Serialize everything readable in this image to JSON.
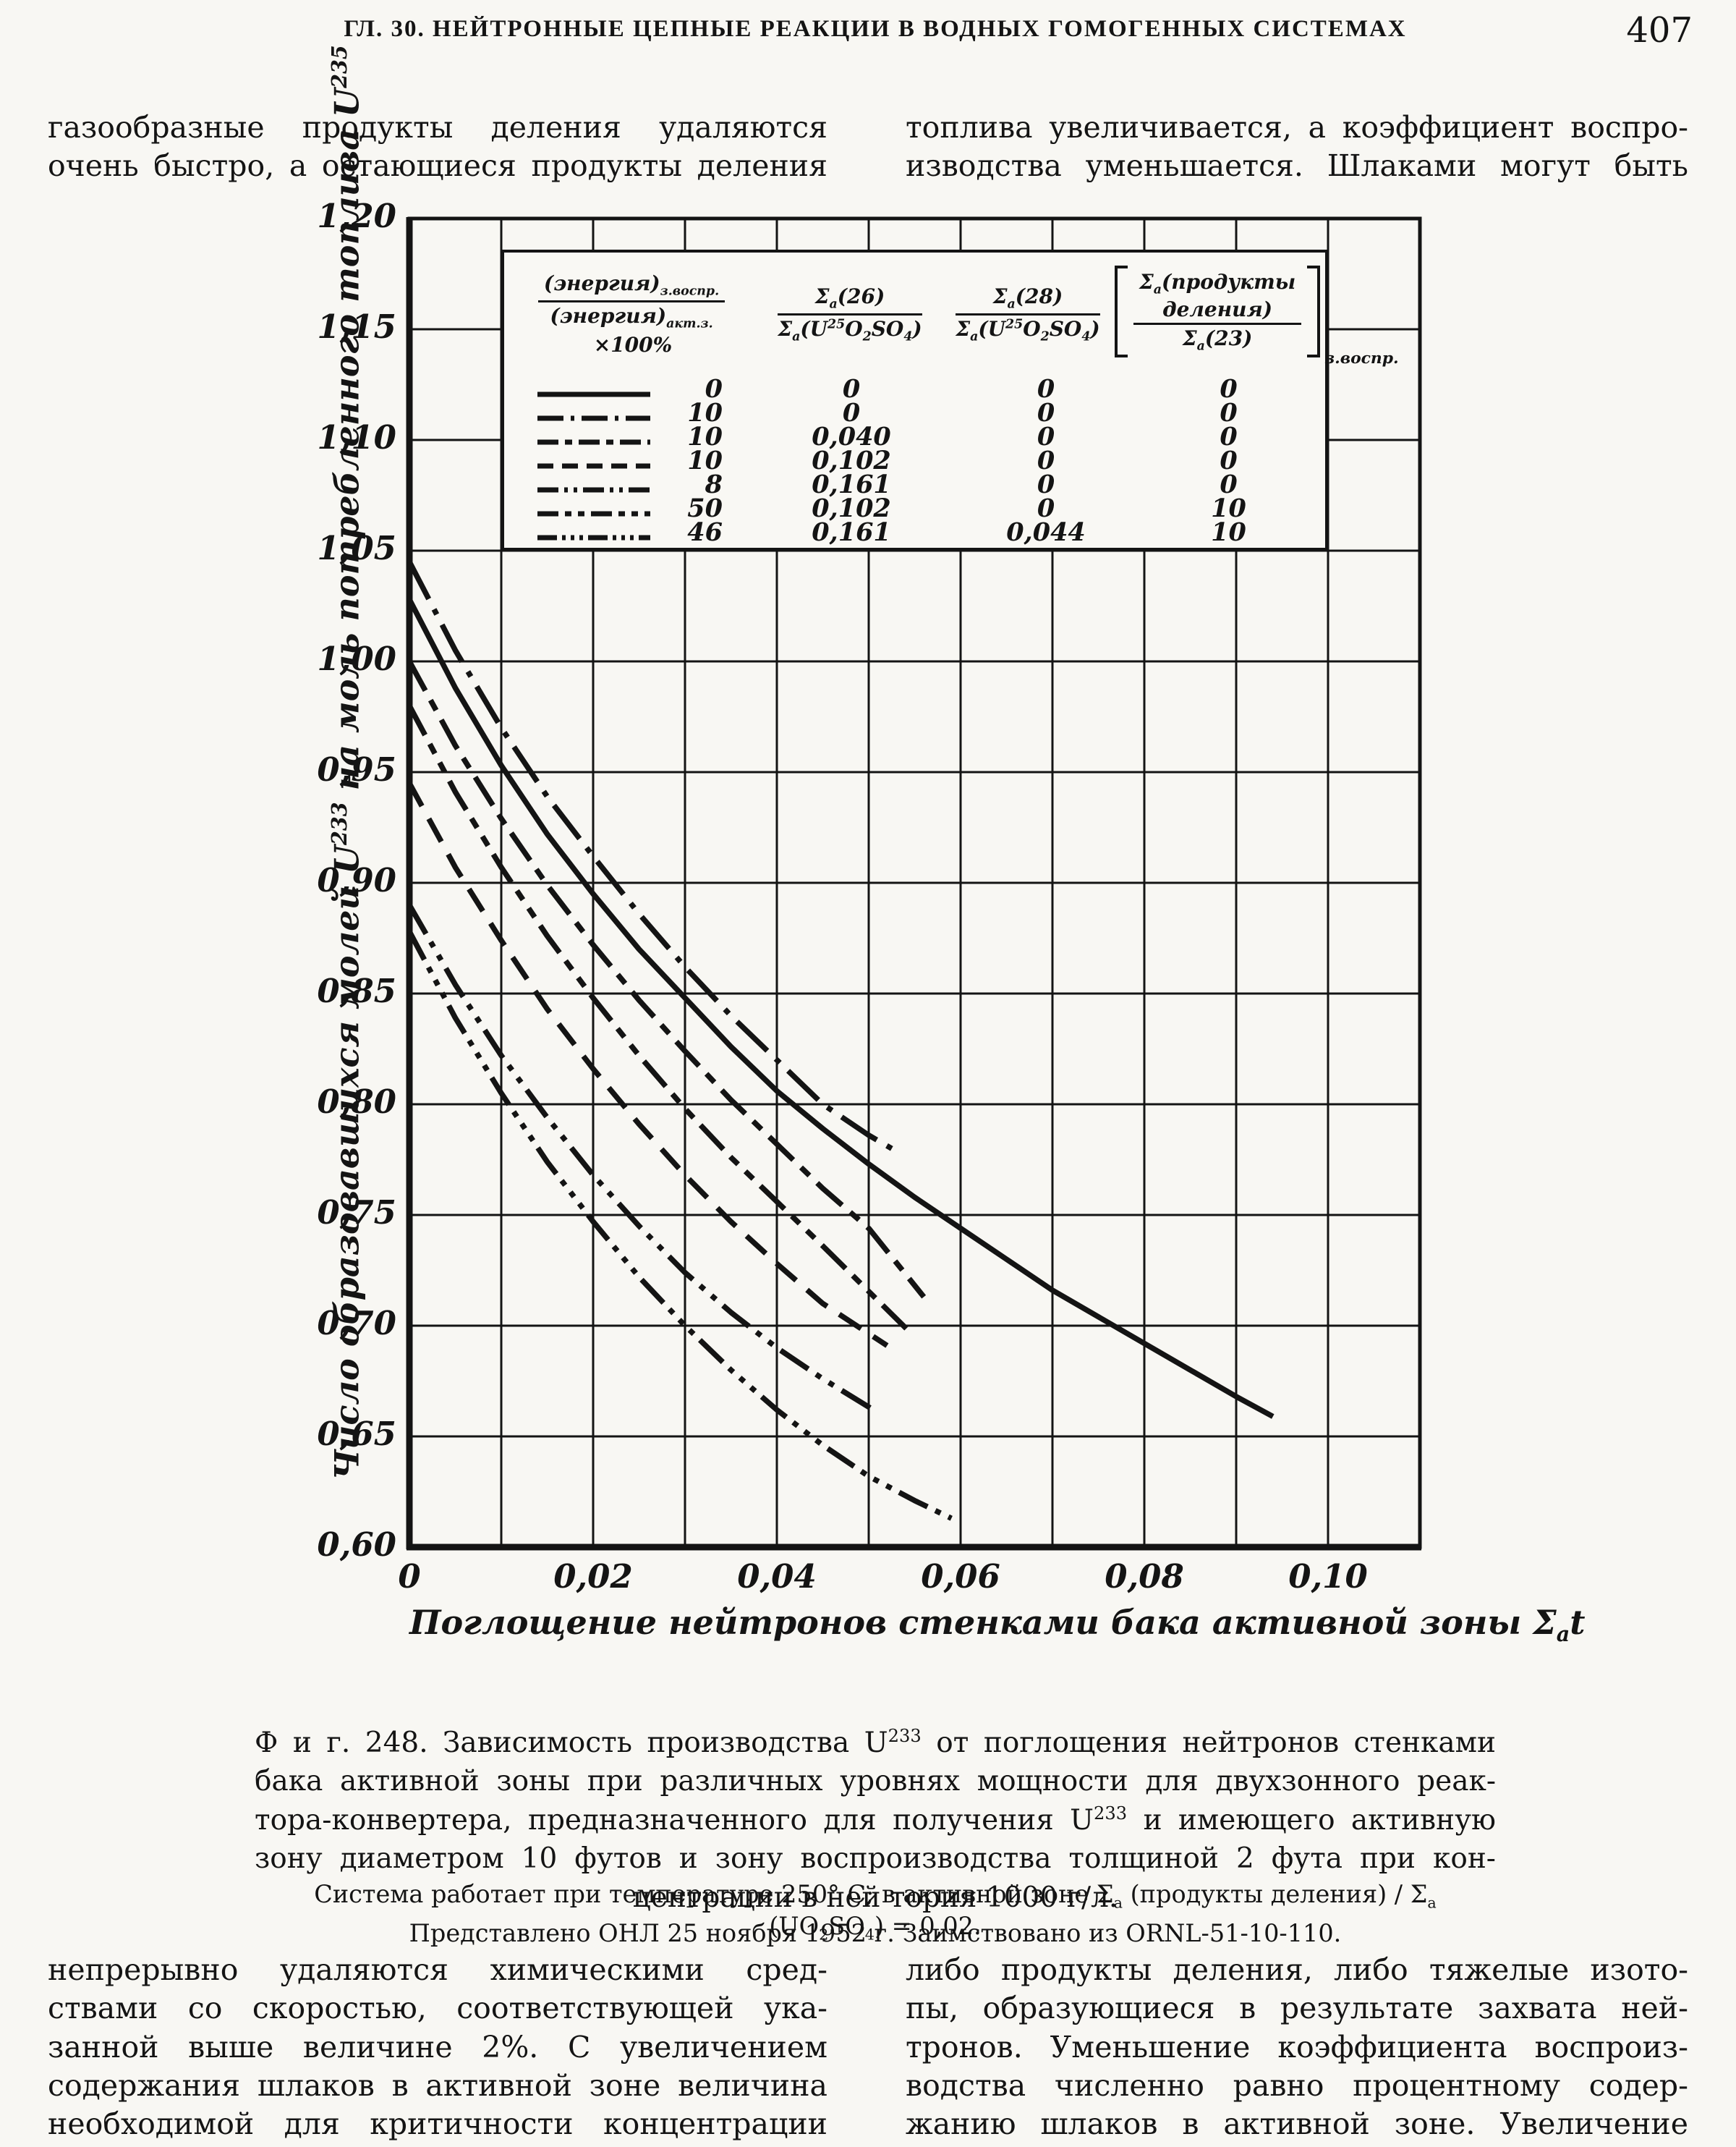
{
  "page": {
    "header_title": "ГЛ. 30. НЕЙТРОННЫЕ ЦЕПНЫЕ РЕАКЦИИ В ВОДНЫХ ГОМОГЕННЫХ СИСТЕМАХ",
    "page_number": "407",
    "ink_color": "#141414",
    "paper_color": "#f8f7f3"
  },
  "paragraphs": {
    "top_left": [
      "газообразные продукты деления удаляются",
      "очень быстро, а остающиеся продукты деления"
    ],
    "top_right": [
      "топлива увеличивается, а коэффициент воспро-",
      "изводства уменьшается. Шлаками могут быть"
    ],
    "bottom_left": [
      "непрерывно удаляются химическими сред-",
      "ствами со скоростью, соответствующей ука-",
      "занной выше величине 2%. С увеличением",
      "содержания шлаков в активной зоне величина",
      "необходимой для критичности концентрации"
    ],
    "bottom_right": [
      "либо продукты деления, либо тяжелые изото-",
      "пы, образующиеся в результате захвата ней-",
      "тронов. Уменьшение коэффициента воспроиз-",
      "водства численно равно процентному содер-",
      "жанию шлаков в активной зоне. Увеличение"
    ]
  },
  "chart_data": {
    "type": "line",
    "title": "",
    "xlabel": "Поглощение нейтронов стенками бака активной зоны Σ_{a}t",
    "ylabel": "Число образовавшихся молей U^{233} на моль потребленного топлива U^{235}",
    "xlim": [
      0,
      0.11
    ],
    "ylim": [
      0.6,
      1.2
    ],
    "grid": "on",
    "x_tick_labels": [
      "0",
      "0,02",
      "0,04",
      "0,06",
      "0,08",
      "0,10"
    ],
    "x_tick_values": [
      0,
      0.02,
      0.04,
      0.06,
      0.08,
      0.1
    ],
    "y_tick_labels": [
      "1,20",
      "1,15",
      "1,10",
      "1,05",
      "1,00",
      "0,95",
      "0,90",
      "0,85",
      "0,80",
      "0,75",
      "0,70",
      "0,65",
      "0,60"
    ],
    "y_tick_values": [
      1.2,
      1.15,
      1.1,
      1.05,
      1.0,
      0.95,
      0.9,
      0.85,
      0.8,
      0.75,
      0.7,
      0.65,
      0.6
    ],
    "x_grid_step": 0.01,
    "y_grid_step": 0.05,
    "series": [
      {
        "name": "solid",
        "line_style": "solid",
        "legend_values": [
          "0",
          "0",
          "0",
          "0"
        ],
        "points": [
          [
            0,
            1.028
          ],
          [
            0.005,
            0.988
          ],
          [
            0.01,
            0.953
          ],
          [
            0.015,
            0.922
          ],
          [
            0.02,
            0.895
          ],
          [
            0.025,
            0.87
          ],
          [
            0.03,
            0.848
          ],
          [
            0.035,
            0.826
          ],
          [
            0.04,
            0.806
          ],
          [
            0.045,
            0.789
          ],
          [
            0.05,
            0.773
          ],
          [
            0.055,
            0.758
          ],
          [
            0.06,
            0.744
          ],
          [
            0.065,
            0.73
          ],
          [
            0.07,
            0.716
          ],
          [
            0.075,
            0.704
          ],
          [
            0.08,
            0.692
          ],
          [
            0.085,
            0.68
          ],
          [
            0.09,
            0.668
          ],
          [
            0.094,
            0.659
          ]
        ]
      },
      {
        "name": "dash-dot-long",
        "line_style": "dash-dot-long",
        "legend_values": [
          "10",
          "0",
          "0",
          "0"
        ],
        "points": [
          [
            0,
            1.045
          ],
          [
            0.005,
            1.005
          ],
          [
            0.01,
            0.97
          ],
          [
            0.015,
            0.939
          ],
          [
            0.02,
            0.912
          ],
          [
            0.025,
            0.886
          ],
          [
            0.03,
            0.862
          ],
          [
            0.035,
            0.84
          ],
          [
            0.04,
            0.82
          ],
          [
            0.045,
            0.8
          ],
          [
            0.05,
            0.786
          ],
          [
            0.0525,
            0.78
          ]
        ]
      },
      {
        "name": "dash-shortdash",
        "line_style": "dash-shortdash",
        "legend_values": [
          "10",
          "0,040",
          "0",
          "0"
        ],
        "points": [
          [
            0,
            1.0
          ],
          [
            0.005,
            0.962
          ],
          [
            0.01,
            0.929
          ],
          [
            0.015,
            0.899
          ],
          [
            0.02,
            0.872
          ],
          [
            0.025,
            0.847
          ],
          [
            0.03,
            0.824
          ],
          [
            0.035,
            0.802
          ],
          [
            0.04,
            0.782
          ],
          [
            0.045,
            0.762
          ],
          [
            0.05,
            0.744
          ],
          [
            0.056,
            0.713
          ]
        ]
      },
      {
        "name": "dashed",
        "line_style": "dashed",
        "legend_values": [
          "10",
          "0,102",
          "0",
          "0"
        ],
        "points": [
          [
            0,
            0.945
          ],
          [
            0.005,
            0.907
          ],
          [
            0.01,
            0.874
          ],
          [
            0.015,
            0.843
          ],
          [
            0.02,
            0.816
          ],
          [
            0.025,
            0.791
          ],
          [
            0.03,
            0.768
          ],
          [
            0.035,
            0.747
          ],
          [
            0.04,
            0.728
          ],
          [
            0.045,
            0.71
          ],
          [
            0.052,
            0.691
          ]
        ]
      },
      {
        "name": "dash-dot-dot",
        "line_style": "dash-dot-dot",
        "legend_values": [
          "8",
          "0,161",
          "0",
          "0"
        ],
        "points": [
          [
            0,
            0.89
          ],
          [
            0.005,
            0.854
          ],
          [
            0.01,
            0.822
          ],
          [
            0.015,
            0.794
          ],
          [
            0.02,
            0.768
          ],
          [
            0.025,
            0.745
          ],
          [
            0.03,
            0.724
          ],
          [
            0.035,
            0.706
          ],
          [
            0.04,
            0.69
          ],
          [
            0.045,
            0.676
          ],
          [
            0.0505,
            0.662
          ]
        ]
      },
      {
        "name": "dash-2shortdash",
        "line_style": "dash-2shortdash",
        "legend_values": [
          "50",
          "0,102",
          "0",
          "10"
        ],
        "points": [
          [
            0,
            0.98
          ],
          [
            0.005,
            0.941
          ],
          [
            0.01,
            0.907
          ],
          [
            0.015,
            0.876
          ],
          [
            0.02,
            0.848
          ],
          [
            0.025,
            0.822
          ],
          [
            0.03,
            0.798
          ],
          [
            0.035,
            0.776
          ],
          [
            0.04,
            0.756
          ],
          [
            0.045,
            0.736
          ],
          [
            0.0545,
            0.697
          ]
        ]
      },
      {
        "name": "dash-3dots",
        "line_style": "dash-3dots",
        "legend_values": [
          "46",
          "0,161",
          "0,044",
          "10"
        ],
        "points": [
          [
            0,
            0.878
          ],
          [
            0.005,
            0.839
          ],
          [
            0.01,
            0.805
          ],
          [
            0.015,
            0.774
          ],
          [
            0.02,
            0.747
          ],
          [
            0.025,
            0.722
          ],
          [
            0.03,
            0.7
          ],
          [
            0.035,
            0.68
          ],
          [
            0.04,
            0.662
          ],
          [
            0.045,
            0.646
          ],
          [
            0.05,
            0.632
          ],
          [
            0.055,
            0.621
          ],
          [
            0.059,
            0.613
          ]
        ]
      }
    ],
    "legend_headers": {
      "col1": {
        "num": "(энергия)_{з.воспр.}",
        "den": "(энергия)_{акт.з.}",
        "suffix": "×100%"
      },
      "col2": {
        "num": "Σ_{a}(26)",
        "den": "Σ_{a}(U^{25}O_{2}SO_{4})"
      },
      "col3": {
        "num": "Σ_{a}(28)",
        "den": "Σ_{a}(U^{25}O_{2}SO_{4})"
      },
      "col4": {
        "num": "Σ_{a}(продукты деления)",
        "den": "Σ_{a}(23)",
        "bracket_sub": "з.воспр."
      }
    }
  },
  "caption": {
    "lines": [
      "Ф и г. 248.  Зависимость производства U^{233} от поглощения нейтронов стенками",
      "бака активной зоны при различных уровнях мощности для двухзонного реак-",
      "тора-конвертера, предназначенного для получения U^{233} и имеющего активную",
      "зону диаметром 10 футов и зону воспроизводства толщиной 2 фута при кон-",
      "центрации в ней тория 1000 г/л."
    ],
    "note1": "Система работает при температуре 250° С; в активной зоне Σ_{a} (продукты деления) / Σ_{a} (UO_{2}SO_{4}) = 0,02.",
    "note2": "Представлено ОНЛ 25 ноября 1952 г. Заимствовано из ORNL-51-10-110."
  }
}
